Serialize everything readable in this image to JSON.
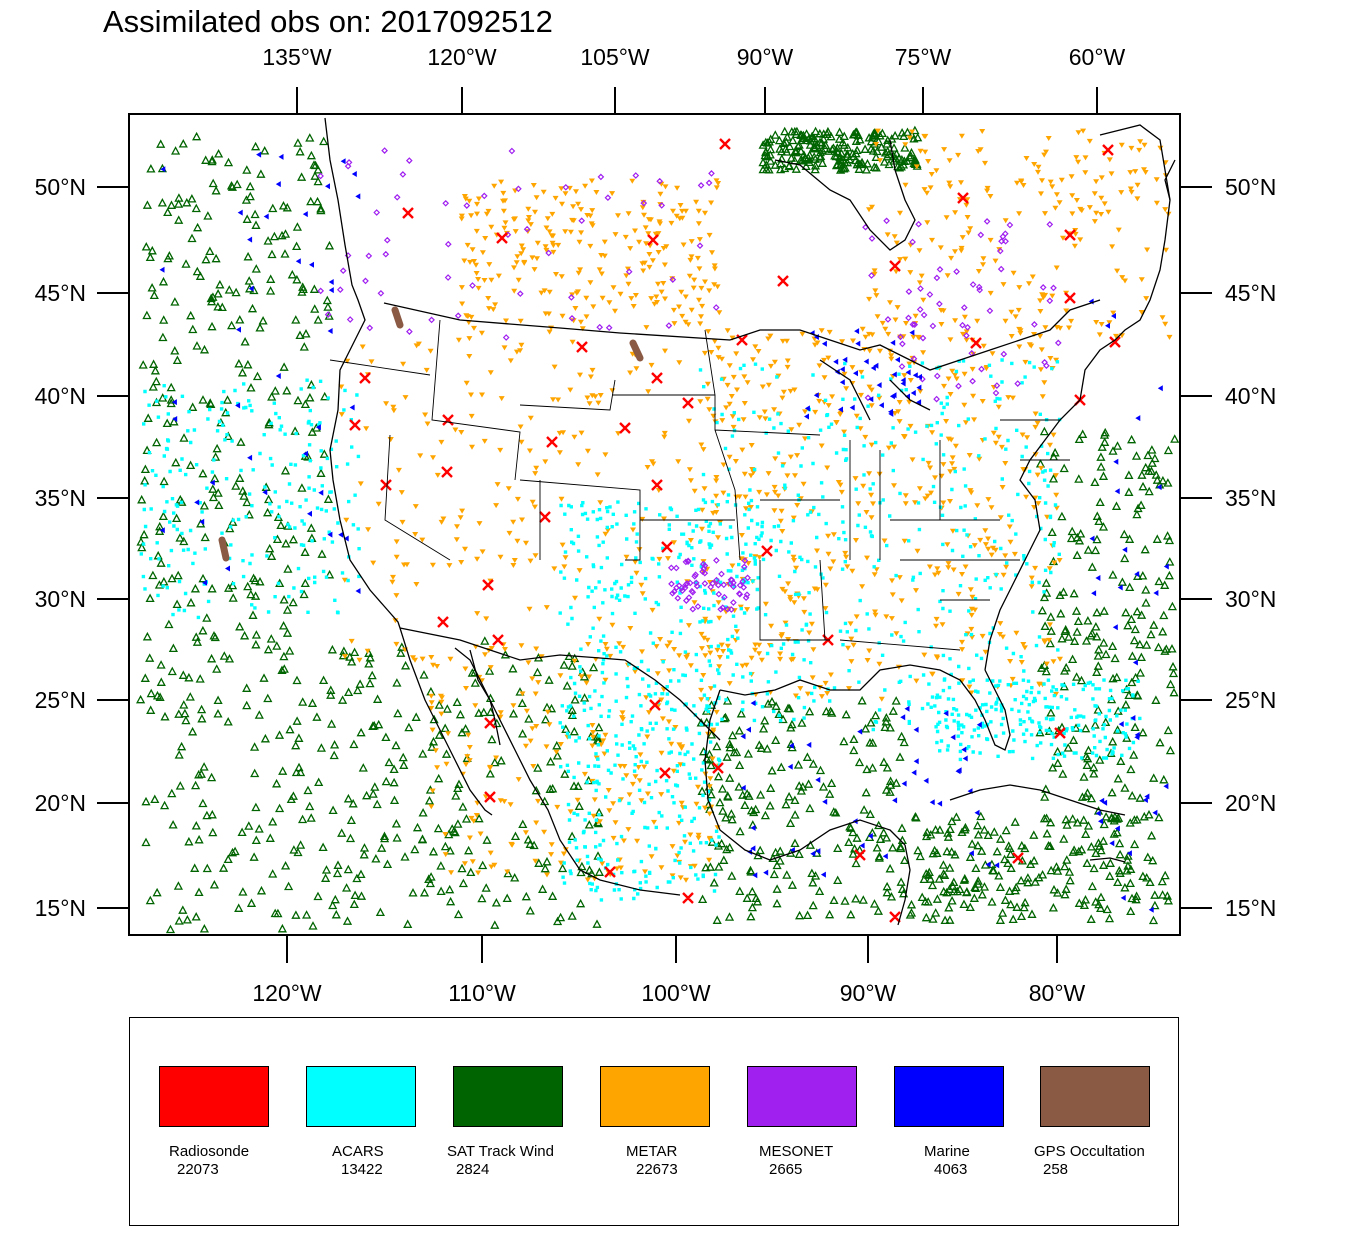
{
  "title": "Assimilated obs on: 2017092512",
  "map": {
    "top_ticks": [
      "135°W",
      "120°W",
      "105°W",
      "90°W",
      "75°W",
      "60°W"
    ],
    "bottom_ticks": [
      "120°W",
      "110°W",
      "100°W",
      "90°W",
      "80°W"
    ],
    "left_ticks": [
      "50°N",
      "45°N",
      "40°N",
      "35°N",
      "30°N",
      "25°N",
      "20°N",
      "15°N"
    ],
    "right_ticks": [
      "50°N",
      "45°N",
      "40°N",
      "35°N",
      "30°N",
      "25°N",
      "20°N",
      "15°N"
    ]
  },
  "legend": [
    {
      "label": "Radiosonde",
      "count": "22073",
      "color": "#ff0000",
      "marker": "red-x-marker"
    },
    {
      "label": "ACARS",
      "count": "13422",
      "color": "#00ffff",
      "marker": "cyan-square-marker"
    },
    {
      "label": "SAT Track Wind",
      "count": "2824",
      "color": "#006400",
      "marker": "green-triangle-marker"
    },
    {
      "label": "METAR",
      "count": "22673",
      "color": "#ffa500",
      "marker": "orange-down-triangle-marker"
    },
    {
      "label": "MESONET",
      "count": "2665",
      "color": "#a020f0",
      "marker": "purple-diamond-marker"
    },
    {
      "label": "Marine",
      "count": "4063",
      "color": "#0000ff",
      "marker": "blue-left-triangle-marker"
    },
    {
      "label": "GPS Occultation",
      "count": "258",
      "color": "#8b5a44",
      "marker": "brown-stroke-marker"
    }
  ]
}
